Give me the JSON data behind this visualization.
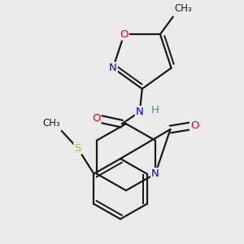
{
  "bg_color": "#ebebeb",
  "bond_color": "#1a1a1a",
  "bond_width": 1.6,
  "atom_colors": {
    "N": "#0000ee",
    "O": "#ee0000",
    "S": "#bbbb00",
    "C": "#1a1a1a",
    "H": "#4a8888"
  },
  "font_size_atom": 9.5,
  "font_size_small": 8.5
}
